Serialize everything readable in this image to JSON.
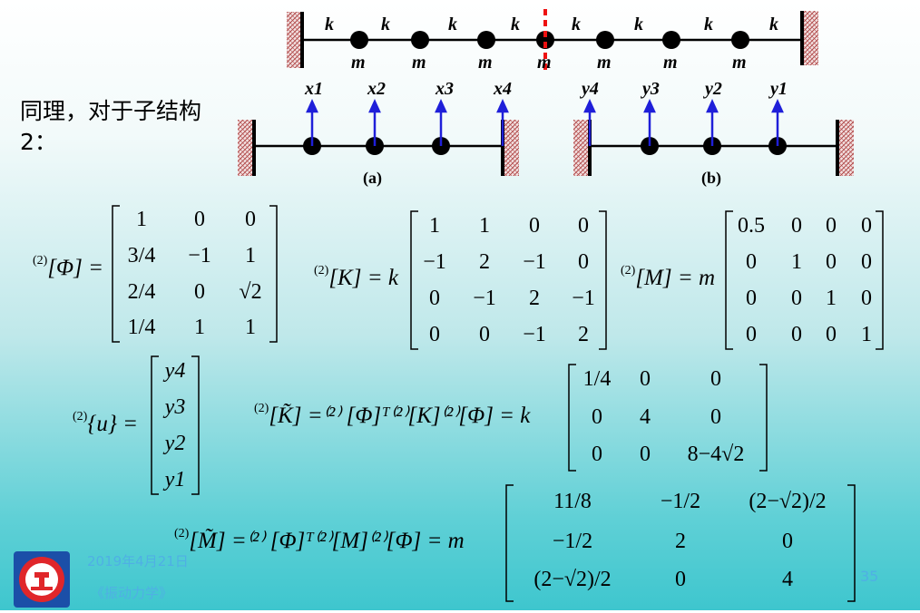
{
  "slide": {
    "intro": "同理，对于子结构2：",
    "footer_date": "2019年4月21日",
    "footer_course": "《振动力学》",
    "page_number": "35"
  },
  "top_chain": {
    "spring_labels": [
      "k",
      "k",
      "k",
      "k",
      "k",
      "k",
      "k",
      "k"
    ],
    "mass_labels": [
      "m",
      "m",
      "m",
      "m",
      "m",
      "m",
      "m"
    ]
  },
  "substructures": {
    "a_labels": [
      "x1",
      "x2",
      "x3",
      "x4"
    ],
    "b_labels": [
      "y4",
      "y3",
      "y2",
      "y1"
    ],
    "caption_a": "(a)",
    "caption_b": "(b)"
  },
  "equations": {
    "phi": {
      "label": "[Φ] =",
      "superscript": "(2)",
      "rows": [
        [
          "1",
          "0",
          "0"
        ],
        [
          "3/4",
          "−1",
          "1"
        ],
        [
          "2/4",
          "0",
          "√2"
        ],
        [
          "1/4",
          "1",
          "1"
        ]
      ]
    },
    "K": {
      "label": "[K] = k",
      "superscript": "(2)",
      "rows": [
        [
          "1",
          "1",
          "0",
          "0"
        ],
        [
          "−1",
          "2",
          "−1",
          "0"
        ],
        [
          "0",
          "−1",
          "2",
          "−1"
        ],
        [
          "0",
          "0",
          "−1",
          "2"
        ]
      ]
    },
    "M": {
      "label": "[M] = m",
      "superscript": "(2)",
      "rows": [
        [
          "0.5",
          "0",
          "0",
          "0"
        ],
        [
          "0",
          "1",
          "0",
          "0"
        ],
        [
          "0",
          "0",
          "1",
          "0"
        ],
        [
          "0",
          "0",
          "0",
          "1"
        ]
      ]
    },
    "u": {
      "label": "{u} =",
      "superscript": "(2)",
      "rows": [
        [
          "y4"
        ],
        [
          "y3"
        ],
        [
          "y2"
        ],
        [
          "y1"
        ]
      ]
    },
    "K_tilde": {
      "label": "[K̃] =⁽²⁾ [Φ]ᵀ⁽²⁾[K]⁽²⁾[Φ] = k",
      "superscript": "(2)",
      "rows": [
        [
          "1/4",
          "0",
          "0"
        ],
        [
          "0",
          "4",
          "0"
        ],
        [
          "0",
          "0",
          "8−4√2"
        ]
      ]
    },
    "M_tilde": {
      "label": "[M̃] =⁽²⁾ [Φ]ᵀ⁽²⁾[M]⁽²⁾[Φ] = m",
      "superscript": "(2)",
      "rows": [
        [
          "11/8",
          "−1/2",
          "(2−√2)/2"
        ],
        [
          "−1/2",
          "2",
          "0"
        ],
        [
          "(2−√2)/2",
          "0",
          "4"
        ]
      ]
    }
  }
}
